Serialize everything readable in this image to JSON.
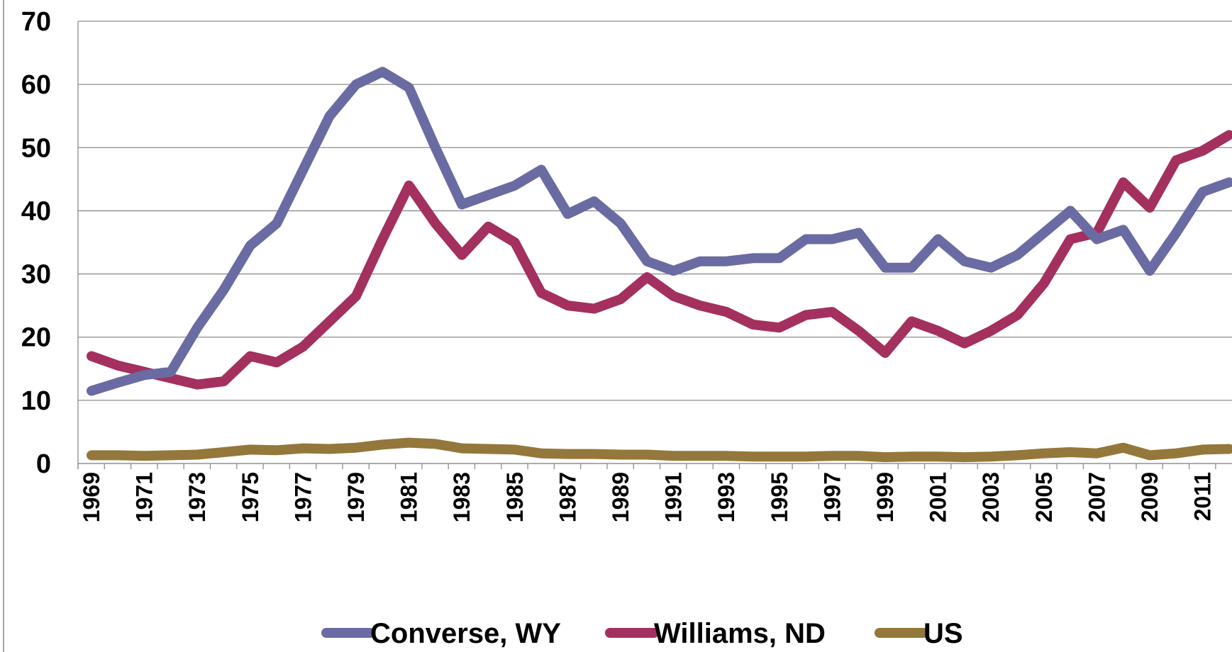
{
  "chart_data": {
    "type": "line",
    "categories": [
      "1969",
      null,
      "1971",
      null,
      "1973",
      null,
      "1975",
      null,
      "1977",
      null,
      "1979",
      null,
      "1981",
      null,
      "1983",
      null,
      "1985",
      null,
      "1987",
      null,
      "1989",
      null,
      "1991",
      null,
      "1993",
      null,
      "1995",
      null,
      "1997",
      null,
      "1999",
      null,
      "2001",
      null,
      "2003",
      null,
      "2005",
      null,
      "2007",
      null,
      "2009",
      null,
      "2011",
      null
    ],
    "series": [
      {
        "name": "Converse, WY",
        "color": "#6b6ba3",
        "values": [
          11.5,
          12.8,
          14,
          14.5,
          21.5,
          27.5,
          34.5,
          38,
          46.5,
          55,
          60,
          62,
          59.5,
          50,
          41,
          42.5,
          44,
          46.5,
          39.5,
          41.5,
          38,
          32,
          30.5,
          32,
          32,
          32.5,
          32.5,
          35.5,
          35.5,
          36.5,
          31,
          31,
          35.5,
          32,
          31,
          33,
          36.5,
          40,
          35.5,
          37,
          30.5,
          36.5,
          43,
          44.5
        ]
      },
      {
        "name": "Williams, ND",
        "color": "#a3305e",
        "values": [
          17,
          15.5,
          14.5,
          13.5,
          12.5,
          13,
          17,
          16,
          18.5,
          22.5,
          26.5,
          35.5,
          44,
          38,
          33,
          37.5,
          35,
          27,
          25,
          24.5,
          26,
          29.5,
          26.5,
          25,
          24,
          22,
          21.5,
          23.5,
          24,
          21,
          17.5,
          22.5,
          21,
          19,
          21,
          23.5,
          28.5,
          35.5,
          36.5,
          44.5,
          40.5,
          48,
          49.5,
          52
        ]
      },
      {
        "name": "US",
        "color": "#94773a",
        "values": [
          1.3,
          1.3,
          1.2,
          1.3,
          1.4,
          1.8,
          2.2,
          2.1,
          2.4,
          2.3,
          2.5,
          3,
          3.3,
          3.1,
          2.4,
          2.3,
          2.2,
          1.6,
          1.5,
          1.5,
          1.4,
          1.4,
          1.2,
          1.2,
          1.2,
          1.1,
          1.1,
          1.1,
          1.2,
          1.2,
          1,
          1.1,
          1.1,
          1,
          1.1,
          1.3,
          1.6,
          1.8,
          1.6,
          2.5,
          1.3,
          1.6,
          2.2,
          2.3
        ]
      }
    ],
    "ylim": [
      0,
      70
    ],
    "yticks": [
      0,
      10,
      20,
      30,
      40,
      50,
      60,
      70
    ],
    "grid": true,
    "legend": "bottom"
  }
}
